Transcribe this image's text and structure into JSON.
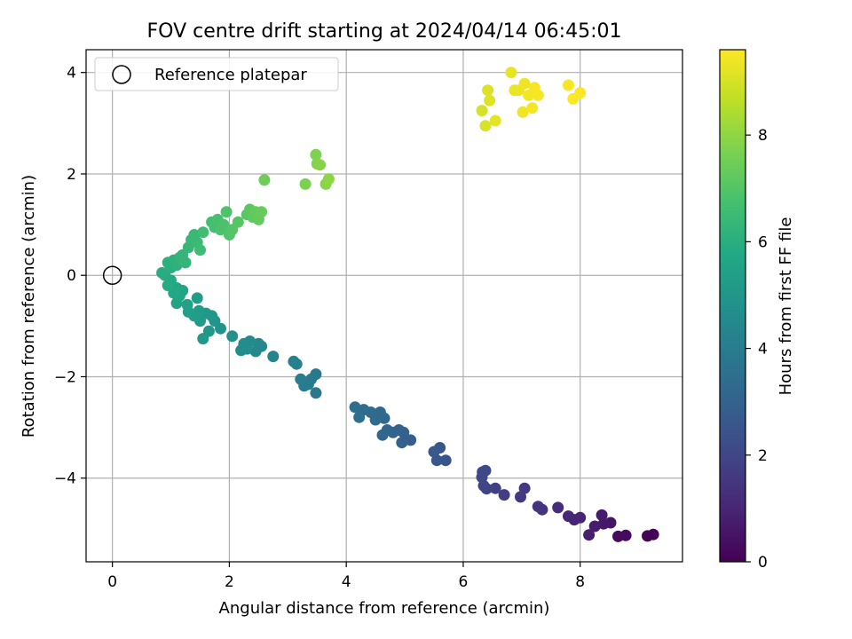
{
  "chart_data": {
    "type": "scatter",
    "title": "FOV centre drift starting at 2024/04/14 06:45:01",
    "xlabel": "Angular distance from reference (arcmin)",
    "ylabel": "Rotation from reference (arcmin)",
    "xlim": [
      -0.45,
      9.75
    ],
    "ylim": [
      -5.65,
      4.45
    ],
    "xticks": [
      0,
      2,
      4,
      6,
      8
    ],
    "yticks": [
      -4,
      -2,
      0,
      2,
      4
    ],
    "grid": true,
    "legend": {
      "placement": "upper-left",
      "entries": [
        "Reference platepar"
      ]
    },
    "colorbar": {
      "label": "Hours from first FF file",
      "colormap": "viridis",
      "range": [
        0,
        9.6
      ],
      "ticks": [
        0,
        2,
        4,
        6,
        8
      ]
    },
    "reference": {
      "x": 0,
      "y": 0
    },
    "series": [
      {
        "points": [
          [
            9.25,
            -5.11,
            0.05
          ],
          [
            9.15,
            -5.14,
            0.1
          ],
          [
            8.78,
            -5.13,
            0.25
          ],
          [
            8.65,
            -5.15,
            0.3
          ],
          [
            8.52,
            -4.88,
            0.55
          ],
          [
            8.4,
            -4.9,
            0.6
          ],
          [
            8.37,
            -4.73,
            0.7
          ],
          [
            8.25,
            -4.95,
            0.75
          ],
          [
            8.15,
            -5.12,
            0.8
          ],
          [
            8.0,
            -4.78,
            0.95
          ],
          [
            7.9,
            -4.82,
            1.0
          ],
          [
            7.8,
            -4.75,
            1.05
          ],
          [
            7.62,
            -4.58,
            1.2
          ],
          [
            7.35,
            -4.62,
            1.4
          ],
          [
            7.28,
            -4.56,
            1.45
          ],
          [
            7.05,
            -4.2,
            1.55
          ],
          [
            6.98,
            -4.37,
            1.6
          ],
          [
            6.7,
            -4.33,
            1.7
          ],
          [
            6.55,
            -4.2,
            1.8
          ],
          [
            6.4,
            -4.21,
            1.9
          ],
          [
            6.35,
            -4.15,
            1.95
          ],
          [
            6.38,
            -3.85,
            2.05
          ],
          [
            6.33,
            -3.88,
            2.1
          ],
          [
            6.32,
            -3.98,
            2.15
          ],
          [
            5.7,
            -3.65,
            2.5
          ],
          [
            5.6,
            -3.4,
            2.55
          ],
          [
            5.55,
            -3.65,
            2.6
          ],
          [
            5.5,
            -3.48,
            2.65
          ],
          [
            5.1,
            -3.25,
            2.85
          ],
          [
            4.98,
            -3.1,
            2.9
          ],
          [
            4.95,
            -3.3,
            2.95
          ],
          [
            4.9,
            -3.05,
            3.0
          ],
          [
            4.8,
            -3.1,
            3.05
          ],
          [
            4.7,
            -3.05,
            3.1
          ],
          [
            4.62,
            -3.15,
            3.15
          ],
          [
            4.65,
            -2.82,
            3.2
          ],
          [
            4.58,
            -2.7,
            3.25
          ],
          [
            4.5,
            -2.85,
            3.3
          ],
          [
            4.42,
            -2.7,
            3.35
          ],
          [
            4.3,
            -2.65,
            3.4
          ],
          [
            4.22,
            -2.8,
            3.45
          ],
          [
            4.15,
            -2.6,
            3.5
          ],
          [
            3.48,
            -2.32,
            3.8
          ],
          [
            3.48,
            -1.95,
            3.85
          ],
          [
            3.4,
            -2.05,
            3.9
          ],
          [
            3.35,
            -2.15,
            3.95
          ],
          [
            3.28,
            -2.18,
            4.0
          ],
          [
            3.22,
            -2.05,
            4.05
          ],
          [
            3.15,
            -1.75,
            4.1
          ],
          [
            3.1,
            -1.7,
            4.15
          ],
          [
            2.75,
            -1.6,
            4.3
          ],
          [
            2.55,
            -1.4,
            4.4
          ],
          [
            2.5,
            -1.35,
            4.45
          ],
          [
            2.45,
            -1.5,
            4.5
          ],
          [
            2.35,
            -1.3,
            4.55
          ],
          [
            2.3,
            -1.45,
            4.6
          ],
          [
            2.25,
            -1.35,
            4.65
          ],
          [
            2.2,
            -1.48,
            4.7
          ],
          [
            2.05,
            -1.2,
            4.8
          ],
          [
            1.85,
            -1.05,
            4.9
          ],
          [
            1.75,
            -0.9,
            4.95
          ],
          [
            1.7,
            -0.8,
            5.0
          ],
          [
            1.65,
            -1.1,
            5.05
          ],
          [
            1.6,
            -0.75,
            5.1
          ],
          [
            1.55,
            -1.25,
            5.15
          ],
          [
            1.5,
            -0.9,
            5.2
          ],
          [
            1.48,
            -0.7,
            5.25
          ],
          [
            1.45,
            -0.45,
            5.3
          ],
          [
            1.4,
            -0.8,
            5.35
          ],
          [
            1.3,
            -0.72,
            5.4
          ],
          [
            1.28,
            -0.58,
            5.45
          ],
          [
            1.1,
            -0.55,
            5.55
          ],
          [
            1.15,
            -0.4,
            5.6
          ],
          [
            1.2,
            -0.3,
            5.65
          ],
          [
            1.1,
            -0.25,
            5.7
          ],
          [
            1.05,
            -0.35,
            5.75
          ],
          [
            1.0,
            -0.1,
            5.8
          ],
          [
            0.95,
            -0.2,
            5.85
          ],
          [
            0.9,
            0.0,
            5.9
          ],
          [
            0.85,
            0.05,
            5.95
          ],
          [
            1.0,
            0.15,
            6.0
          ],
          [
            0.95,
            0.25,
            6.05
          ],
          [
            1.05,
            0.3,
            6.1
          ],
          [
            1.1,
            0.2,
            6.15
          ],
          [
            1.15,
            0.35,
            6.2
          ],
          [
            1.2,
            0.4,
            6.25
          ],
          [
            1.25,
            0.25,
            6.3
          ],
          [
            1.3,
            0.55,
            6.35
          ],
          [
            1.35,
            0.7,
            6.4
          ],
          [
            1.4,
            0.8,
            6.45
          ],
          [
            1.45,
            0.65,
            6.5
          ],
          [
            1.5,
            0.5,
            6.55
          ],
          [
            1.55,
            0.85,
            6.6
          ],
          [
            1.7,
            1.05,
            6.65
          ],
          [
            1.75,
            0.95,
            6.7
          ],
          [
            1.8,
            1.1,
            6.75
          ],
          [
            1.85,
            0.9,
            6.8
          ],
          [
            1.9,
            1.0,
            6.85
          ],
          [
            1.95,
            1.25,
            6.9
          ],
          [
            2.0,
            0.8,
            6.95
          ],
          [
            2.05,
            0.9,
            7.0
          ],
          [
            2.15,
            1.05,
            7.05
          ],
          [
            2.3,
            1.2,
            7.1
          ],
          [
            2.35,
            1.3,
            7.15
          ],
          [
            2.4,
            1.15,
            7.2
          ],
          [
            2.45,
            1.25,
            7.25
          ],
          [
            2.5,
            1.1,
            7.3
          ],
          [
            2.55,
            1.25,
            7.35
          ],
          [
            2.6,
            1.88,
            7.45
          ],
          [
            3.3,
            1.8,
            7.7
          ],
          [
            3.48,
            2.38,
            7.75
          ],
          [
            3.5,
            2.2,
            7.8
          ],
          [
            3.55,
            2.18,
            7.85
          ],
          [
            3.65,
            1.8,
            7.9
          ],
          [
            3.7,
            1.9,
            7.95
          ],
          [
            6.32,
            3.25,
            9.0
          ],
          [
            6.38,
            2.95,
            9.05
          ],
          [
            6.42,
            3.65,
            9.1
          ],
          [
            6.45,
            3.45,
            9.15
          ],
          [
            6.55,
            3.05,
            9.2
          ],
          [
            6.82,
            4.0,
            9.25
          ],
          [
            6.88,
            3.65,
            9.3
          ],
          [
            6.95,
            3.65,
            9.35
          ],
          [
            7.02,
            3.22,
            9.4
          ],
          [
            7.05,
            3.78,
            9.4
          ],
          [
            7.12,
            3.55,
            9.45
          ],
          [
            7.18,
            3.3,
            9.45
          ],
          [
            7.22,
            3.7,
            9.5
          ],
          [
            7.28,
            3.55,
            9.5
          ],
          [
            7.8,
            3.75,
            9.5
          ],
          [
            7.88,
            3.48,
            9.55
          ],
          [
            8.0,
            3.6,
            9.55
          ]
        ]
      }
    ]
  }
}
